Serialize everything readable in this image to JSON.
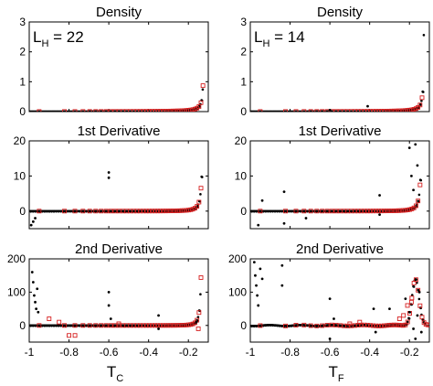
{
  "chart_data": [
    {
      "type": "scatter",
      "title": "Density",
      "annotation": "L_H = 22",
      "annotation_base": "L",
      "annotation_sub": "H",
      "annotation_rest": " = 22",
      "xlim": [
        -1,
        -0.1
      ],
      "ylim": [
        0,
        3
      ],
      "yticks": [
        "0",
        "1",
        "2",
        "3"
      ],
      "curve": {
        "type": "power",
        "a": 0.16,
        "b": 0.028,
        "x0": -0.12,
        "n": 1.2
      },
      "black_points_color": "#000000",
      "red_markers_color": "#d62020",
      "outliers": []
    },
    {
      "type": "scatter",
      "title": "Density",
      "annotation": "L_H = 14",
      "annotation_base": "L",
      "annotation_sub": "H",
      "annotation_rest": " = 14",
      "xlim": [
        -1,
        -0.1
      ],
      "ylim": [
        0,
        3
      ],
      "yticks": [
        "0",
        "1",
        "2",
        "3"
      ],
      "curve": {
        "type": "power",
        "a": 0.15,
        "b": 0.03,
        "x0": -0.125,
        "n": 1.2
      },
      "black_points_color": "#000000",
      "red_markers_color": "#d62020",
      "outliers": [
        [
          -0.41,
          0.18
        ],
        [
          -0.6,
          0.05
        ]
      ]
    },
    {
      "type": "scatter",
      "title": "1st Derivative",
      "xlim": [
        -1,
        -0.1
      ],
      "ylim": [
        -5,
        20
      ],
      "yticks": [
        "0",
        "10",
        "20"
      ],
      "curve": {
        "type": "power",
        "a": 0.9,
        "b": 0.045,
        "x0": -0.12,
        "n": 2
      },
      "black_points_color": "#000000",
      "red_markers_color": "#d62020",
      "outliers": [
        [
          -0.6,
          11
        ],
        [
          -0.6,
          9.5
        ],
        [
          -0.98,
          -3
        ],
        [
          -0.97,
          -2
        ],
        [
          -0.99,
          -4
        ]
      ]
    },
    {
      "type": "scatter",
      "title": "1st Derivative",
      "xlim": [
        -1,
        -0.1
      ],
      "ylim": [
        -5,
        20
      ],
      "yticks": [
        "0",
        "10",
        "20"
      ],
      "curve": {
        "type": "power",
        "a": 0.9,
        "b": 0.048,
        "x0": -0.13,
        "n": 2
      },
      "black_points_color": "#000000",
      "red_markers_color": "#d62020",
      "outliers": [
        [
          -0.83,
          5.5
        ],
        [
          -0.83,
          -3.5
        ],
        [
          -0.96,
          -4
        ],
        [
          -0.94,
          3
        ],
        [
          -0.72,
          -2
        ],
        [
          -0.35,
          4.5
        ],
        [
          -0.35,
          -1
        ],
        [
          -0.2,
          18
        ],
        [
          -0.18,
          6
        ],
        [
          -0.17,
          19
        ],
        [
          -0.19,
          10
        ],
        [
          -0.16,
          13
        ]
      ]
    },
    {
      "type": "scatter",
      "title": "2nd Derivative",
      "xlim": [
        -1,
        -0.1
      ],
      "ylim": [
        -50,
        200
      ],
      "yticks": [
        "0",
        "100",
        "200"
      ],
      "xticks": [
        "-1",
        "-0.8",
        "-0.6",
        "-0.4",
        "-0.2"
      ],
      "xlabel_base": "T",
      "xlabel_sub": "C",
      "curve": {
        "type": "power",
        "a": 4,
        "b": 0.06,
        "x0": -0.12,
        "n": 2.8
      },
      "black_points_color": "#000000",
      "red_markers_color": "#d62020",
      "outliers": [
        [
          -0.985,
          160
        ],
        [
          -0.98,
          130
        ],
        [
          -0.975,
          90
        ],
        [
          -0.97,
          70
        ],
        [
          -0.965,
          50
        ],
        [
          -0.96,
          110
        ],
        [
          -0.955,
          40
        ],
        [
          -0.6,
          100
        ],
        [
          -0.6,
          60
        ],
        [
          -0.59,
          20
        ],
        [
          -0.35,
          30
        ],
        [
          -0.35,
          -10
        ],
        [
          -0.16,
          10
        ]
      ],
      "red_outliers": [
        [
          -0.8,
          -30
        ],
        [
          -0.77,
          -30
        ],
        [
          -0.9,
          20
        ],
        [
          -0.85,
          10
        ],
        [
          -0.15,
          -10
        ],
        [
          -0.55,
          5
        ]
      ]
    },
    {
      "type": "scatter",
      "title": "2nd Derivative",
      "xlim": [
        -1,
        -0.1
      ],
      "ylim": [
        -50,
        200
      ],
      "yticks": [
        "0",
        "100",
        "200"
      ],
      "xticks": [
        "-1",
        "-0.8",
        "-0.6",
        "-0.4",
        "-0.2"
      ],
      "xlabel_base": "T",
      "xlabel_sub": "F",
      "curve": {
        "type": "peak",
        "peak_x": -0.17,
        "peak_y": 140,
        "width": 0.025
      },
      "black_points_color": "#000000",
      "red_markers_color": "#d62020",
      "outliers": [
        [
          -0.98,
          190
        ],
        [
          -0.975,
          150
        ],
        [
          -0.97,
          120
        ],
        [
          -0.965,
          90
        ],
        [
          -0.96,
          60
        ],
        [
          -0.95,
          170
        ],
        [
          -0.94,
          140
        ],
        [
          -0.84,
          180
        ],
        [
          -0.84,
          120
        ],
        [
          -0.6,
          80
        ],
        [
          -0.6,
          -40
        ],
        [
          -0.58,
          20
        ],
        [
          -0.38,
          50
        ],
        [
          -0.37,
          -20
        ],
        [
          -0.3,
          50
        ],
        [
          -0.22,
          80
        ],
        [
          -0.2,
          40
        ],
        [
          -0.18,
          -10
        ],
        [
          -0.15,
          100
        ],
        [
          -0.14,
          -20
        ],
        [
          -0.16,
          30
        ],
        [
          -0.17,
          -40
        ]
      ],
      "red_outliers": [
        [
          -0.5,
          5
        ],
        [
          -0.45,
          10
        ],
        [
          -0.25,
          20
        ],
        [
          -0.21,
          60
        ],
        [
          -0.19,
          70
        ],
        [
          -0.23,
          30
        ]
      ]
    }
  ]
}
